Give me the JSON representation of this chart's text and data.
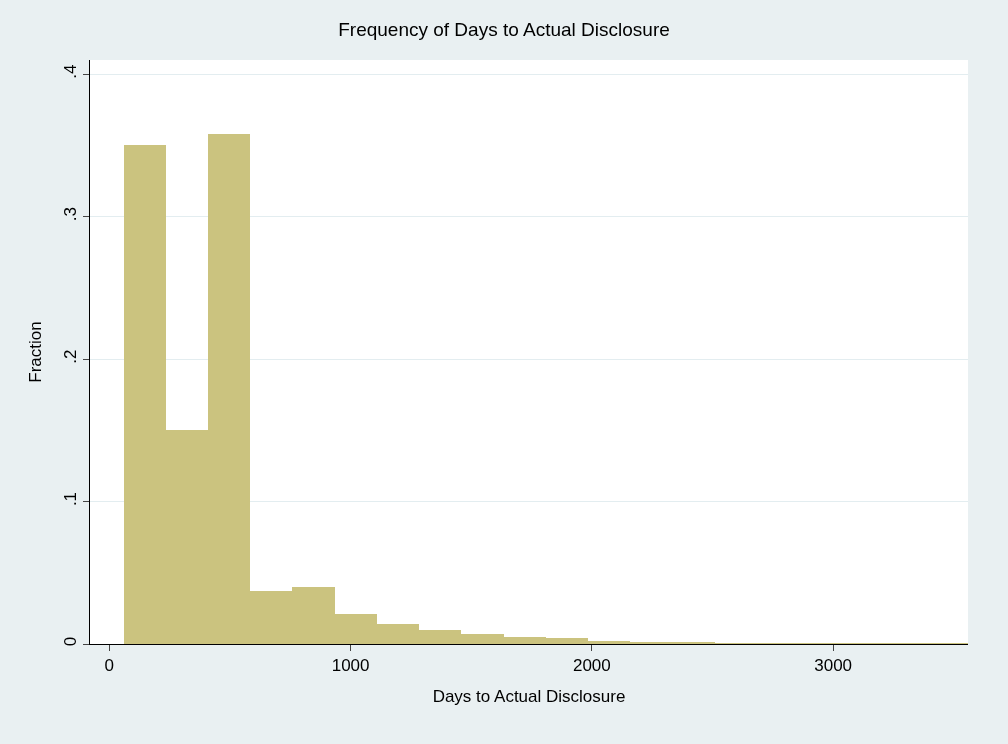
{
  "chart_data": {
    "type": "histogram",
    "title": "Frequency of Days to Actual Disclosure",
    "xlabel": "Days to Actual Disclosure",
    "ylabel": "Fraction",
    "bins": [
      59,
      234,
      409,
      584,
      759,
      934,
      1109,
      1284,
      1459,
      1634,
      1809,
      1984,
      2159,
      2334,
      2509,
      2684,
      2859,
      3034,
      3209,
      3384,
      3559
    ],
    "values": [
      0.35,
      0.15,
      0.358,
      0.037,
      0.04,
      0.021,
      0.014,
      0.01,
      0.007,
      0.005,
      0.004,
      0.002,
      0.0015,
      0.0008,
      0.0005,
      0.0003,
      0.0002,
      0.0002,
      0.0001,
      0.0001
    ],
    "color": "#cbc37f",
    "xlim": [
      -80,
      3559
    ],
    "xticks": [
      0,
      1000,
      2000,
      3000
    ],
    "ylim": [
      0,
      0.41
    ],
    "yticks": [
      {
        "value": 0,
        "label": "0"
      },
      {
        "value": 0.1,
        "label": ".1"
      },
      {
        "value": 0.2,
        "label": ".2"
      },
      {
        "value": 0.3,
        "label": ".3"
      },
      {
        "value": 0.4,
        "label": ".4"
      }
    ],
    "grid": "y"
  }
}
